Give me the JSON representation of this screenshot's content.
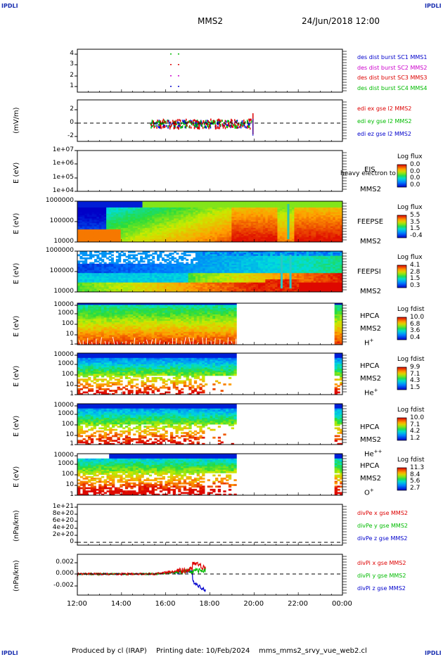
{
  "header": {
    "corner_tl": "IPDLI",
    "corner_tr": "IPDLI",
    "corner_bl": "IPDLI",
    "corner_br": "IPDLI",
    "spacecraft": "MMS2",
    "datetime": "24/Jun/2018 12:00"
  },
  "footer": {
    "produced": "Produced by cl (IRAP)",
    "printing": "Printing date: 10/Feb/2024",
    "file": "mms_mms2_srvy_vue_web2.cl"
  },
  "xaxis": {
    "ticks": [
      "12:00",
      "14:00",
      "16:00",
      "18:00",
      "20:00",
      "22:00",
      "00:00"
    ]
  },
  "panels": {
    "p1": {
      "ticks": [
        "4",
        "3",
        "2",
        "1"
      ],
      "legend": [
        "des dist burst SC1 MMS1",
        "des dist burst SC2 MMS2",
        "des dist burst SC3 MMS3",
        "des dist burst SC4 MMS4"
      ],
      "colors": [
        "#0000cc",
        "#cc00cc",
        "#dd0000",
        "#00bb00"
      ]
    },
    "p2": {
      "ylabel": "(mV/m)",
      "ticks": [
        "2",
        "0",
        "-2"
      ],
      "legend": [
        "edi ex gse l2 MMS2",
        "edi ey gse l2 MMS2",
        "edi ez gse l2 MMS2"
      ],
      "colors": [
        "#dd0000",
        "#00bb00",
        "#0000cc"
      ]
    },
    "p3": {
      "ylabel": "E (eV)",
      "ticks": [
        "1e+07",
        "1e+06",
        "1e+05",
        "1e+04"
      ],
      "inst": "EIS",
      "inst2": "MMS2",
      "overlay": "heavy electron to",
      "cbar_title": "Log flux",
      "cbar": [
        "0.0",
        "0.0",
        "0.0",
        "0.0"
      ]
    },
    "p4": {
      "ylabel": "E (eV)",
      "ticks": [
        "1000000",
        "100000",
        "10000"
      ],
      "inst": "FEEPSE",
      "inst2": "MMS2",
      "cbar_title": "Log flux",
      "cbar": [
        "5.5",
        "3.5",
        "1.5",
        "-0.4"
      ]
    },
    "p5": {
      "ylabel": "E (eV)",
      "ticks": [
        "1000000",
        "100000",
        "10000"
      ],
      "inst": "FEEPSI",
      "inst2": "MMS2",
      "cbar_title": "Log flux",
      "cbar": [
        "4.1",
        "2.8",
        "1.5",
        "0.3"
      ]
    },
    "p6": {
      "ylabel": "E (eV)",
      "ticks": [
        "10000",
        "1000",
        "100",
        "10",
        "1"
      ],
      "inst": "HPCA",
      "inst2": "MMS2",
      "species": "H",
      "sup": "+",
      "cbar_title": "Log fdist",
      "cbar": [
        "10.0",
        "6.8",
        "3.6",
        "0.4"
      ]
    },
    "p7": {
      "ylabel": "E (eV)",
      "ticks": [
        "10000",
        "1000",
        "100",
        "10",
        "1"
      ],
      "inst": "HPCA",
      "inst2": "MMS2",
      "species": "He",
      "sup": "+",
      "cbar_title": "Log fdist",
      "cbar": [
        "9.9",
        "7.1",
        "4.3",
        "1.5"
      ]
    },
    "p8": {
      "ylabel": "E (eV)",
      "ticks": [
        "10000",
        "1000",
        "100",
        "10",
        "1"
      ],
      "inst": "HPCA",
      "inst2": "MMS2",
      "species": "He",
      "sup": "++",
      "cbar_title": "Log fdist",
      "cbar": [
        "10.0",
        "7.1",
        "4.2",
        "1.2"
      ]
    },
    "p9": {
      "ylabel": "E (eV)",
      "ticks": [
        "10000",
        "1000",
        "100",
        "10",
        "1"
      ],
      "inst": "HPCA",
      "inst2": "MMS2",
      "species": "O",
      "sup": "+",
      "cbar_title": "Log fdist",
      "cbar": [
        "11.3",
        "8.4",
        "5.6",
        "2.7"
      ]
    },
    "p10": {
      "ylabel": "(nPa/km)",
      "ticks": [
        "1e+21",
        "8e+20",
        "6e+20",
        "4e+20",
        "2e+20",
        "0"
      ],
      "legend": [
        "divPe x gse MMS2",
        "divPe y gse MMS2",
        "divPe z gse MMS2"
      ],
      "colors": [
        "#dd0000",
        "#00bb00",
        "#0000cc"
      ]
    },
    "p11": {
      "ylabel": "(nPa/km)",
      "ticks": [
        "0.002",
        "0.000",
        "-0.002"
      ],
      "legend": [
        "divPi x gse MMS2",
        "divPi y gse MMS2",
        "divPi z gse MMS2"
      ],
      "colors": [
        "#dd0000",
        "#00bb00",
        "#0000cc"
      ]
    }
  },
  "chart_data": {
    "type": "heatmap",
    "x_range": [
      "12:00",
      "00:00"
    ],
    "panels": [
      {
        "id": "p1",
        "type": "scatter",
        "y_range": [
          1,
          4
        ],
        "series": [
          {
            "name": "des dist burst SC1 MMS1",
            "x": [
              "16:20",
              "16:40"
            ],
            "y": [
              1,
              1
            ]
          },
          {
            "name": "des dist burst SC2 MMS2",
            "x": [
              "16:20",
              "16:40"
            ],
            "y": [
              2,
              2
            ]
          },
          {
            "name": "des dist burst SC3 MMS3",
            "x": [
              "16:20",
              "16:40"
            ],
            "y": [
              3,
              3
            ]
          },
          {
            "name": "des dist burst SC4 MMS4",
            "x": [
              "16:20",
              "16:40"
            ],
            "y": [
              4,
              4
            ]
          }
        ]
      },
      {
        "id": "p2",
        "type": "scatter",
        "y_range": [
          -3,
          3
        ],
        "series": [
          {
            "name": "edi ex gse l2 MMS2",
            "x_range": [
              "15:20",
              "20:00"
            ],
            "y_range": [
              -1,
              3
            ]
          },
          {
            "name": "edi ey gse l2 MMS2",
            "x_range": [
              "15:20",
              "20:00"
            ],
            "y_range": [
              -1.5,
              1.5
            ]
          },
          {
            "name": "edi ez gse l2 MMS2",
            "x_range": [
              "15:20",
              "20:00"
            ],
            "y_range": [
              -2,
              1
            ]
          }
        ]
      },
      {
        "id": "p3",
        "type": "heatmap",
        "y_range": [
          10000,
          10000000
        ],
        "y_scale": "log",
        "data": "none"
      },
      {
        "id": "p4",
        "type": "heatmap",
        "y_range": [
          10000,
          1000000
        ],
        "y_scale": "log",
        "z_range": [
          -0.4,
          5.5
        ],
        "x_coverage": [
          "12:00",
          "00:00"
        ]
      },
      {
        "id": "p5",
        "type": "heatmap",
        "y_range": [
          10000,
          1000000
        ],
        "y_scale": "log",
        "z_range": [
          0.3,
          4.1
        ],
        "x_coverage": [
          "12:00",
          "00:00"
        ]
      },
      {
        "id": "p6",
        "type": "heatmap",
        "y_range": [
          1,
          10000
        ],
        "y_scale": "log",
        "z_range": [
          0.4,
          10.0
        ],
        "x_coverage": [
          [
            "12:00",
            "19:15"
          ],
          [
            "23:35",
            "00:00"
          ]
        ]
      },
      {
        "id": "p7",
        "type": "heatmap",
        "y_range": [
          1,
          10000
        ],
        "y_scale": "log",
        "z_range": [
          1.5,
          9.9
        ],
        "x_coverage": [
          [
            "12:00",
            "19:15"
          ],
          [
            "23:35",
            "00:00"
          ]
        ]
      },
      {
        "id": "p8",
        "type": "heatmap",
        "y_range": [
          1,
          10000
        ],
        "y_scale": "log",
        "z_range": [
          1.2,
          10.0
        ],
        "x_coverage": [
          [
            "12:00",
            "19:15"
          ],
          [
            "23:35",
            "00:00"
          ]
        ]
      },
      {
        "id": "p9",
        "type": "heatmap",
        "y_range": [
          1,
          10000
        ],
        "y_scale": "log",
        "z_range": [
          2.7,
          11.3
        ],
        "x_coverage": [
          [
            "12:00",
            "19:15"
          ],
          [
            "23:35",
            "00:00"
          ]
        ]
      },
      {
        "id": "p10",
        "type": "line",
        "y_range": [
          0,
          1e+21
        ],
        "data": "none"
      },
      {
        "id": "p11",
        "type": "line",
        "y_range": [
          -0.0035,
          0.003
        ],
        "x_coverage": [
          "12:00",
          "17:50"
        ],
        "series": [
          {
            "name": "divPi x gse MMS2",
            "peak": 0.0024
          },
          {
            "name": "divPi y gse MMS2",
            "peak": 0.0012
          },
          {
            "name": "divPi z gse MMS2",
            "min": -0.0028
          }
        ]
      }
    ]
  }
}
